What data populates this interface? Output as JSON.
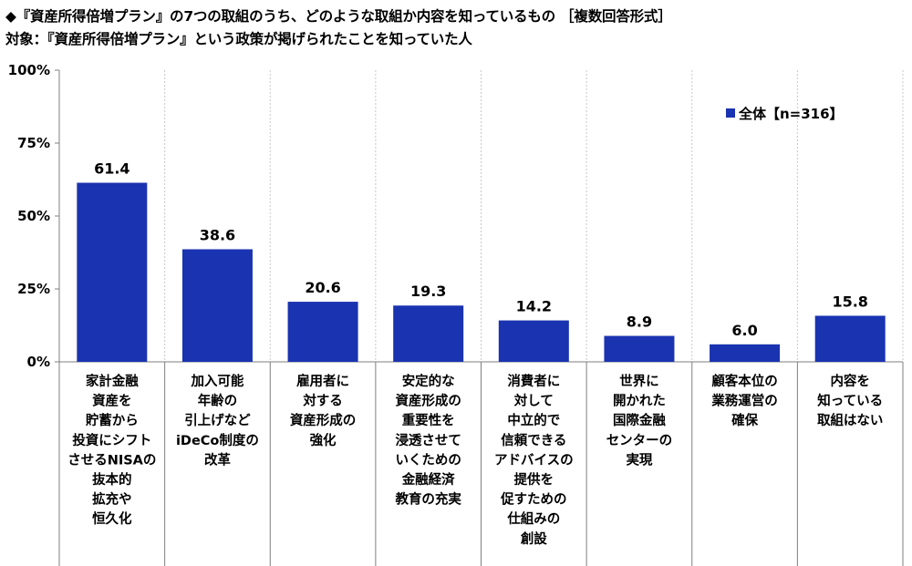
{
  "header": {
    "title": "◆『資産所得倍増プラン』の7つの取組のうち、どのような取組か内容を知っているもの ［複数回答形式］",
    "subtitle": "対象：『資産所得倍増プラン』という政策が掲げられたことを知っていた人"
  },
  "chart_data": {
    "type": "bar",
    "title": "◆『資産所得倍増プラン』の7つの取組のうち、どのような取組か内容を知っているもの ［複数回答形式］",
    "subtitle": "対象：『資産所得倍増プラン』という政策が掲げられたことを知っていた人",
    "categories": [
      [
        "家計金融",
        "資産を",
        "貯蓄から",
        "投資にシフト",
        "させるNISAの",
        "抜本的",
        "拡充や",
        "恒久化"
      ],
      [
        "加入可能",
        "年齢の",
        "引上げなど",
        "iDeCo制度の",
        "改革"
      ],
      [
        "雇用者に",
        "対する",
        "資産形成の",
        "強化"
      ],
      [
        "安定的な",
        "資産形成の",
        "重要性を",
        "浸透させて",
        "いくための",
        "金融経済",
        "教育の充実"
      ],
      [
        "消費者に",
        "対して",
        "中立的で",
        "信頼できる",
        "アドバイスの",
        "提供を",
        "促すための",
        "仕組みの",
        "創設"
      ],
      [
        "世界に",
        "開かれた",
        "国際金融",
        "センターの",
        "実現"
      ],
      [
        "顧客本位の",
        "業務運営の",
        "確保"
      ],
      [
        "内容を",
        "知っている",
        "取組はない"
      ]
    ],
    "series": [
      {
        "name": "全体【n=316】",
        "values": [
          61.4,
          38.6,
          20.6,
          19.3,
          14.2,
          8.9,
          6.0,
          15.8
        ],
        "color": "#1a33b0"
      }
    ],
    "value_labels": [
      "61.4",
      "38.6",
      "20.6",
      "19.3",
      "14.2",
      "8.9",
      "6.0",
      "15.8"
    ],
    "ylim": [
      0,
      100
    ],
    "yticks": [
      0,
      25,
      50,
      75,
      100
    ],
    "ytick_labels": [
      "0%",
      "25%",
      "50%",
      "75%",
      "100%"
    ],
    "xlabel": "",
    "ylabel": "",
    "grid": "vertical category separators",
    "legend_position": "top-right"
  }
}
